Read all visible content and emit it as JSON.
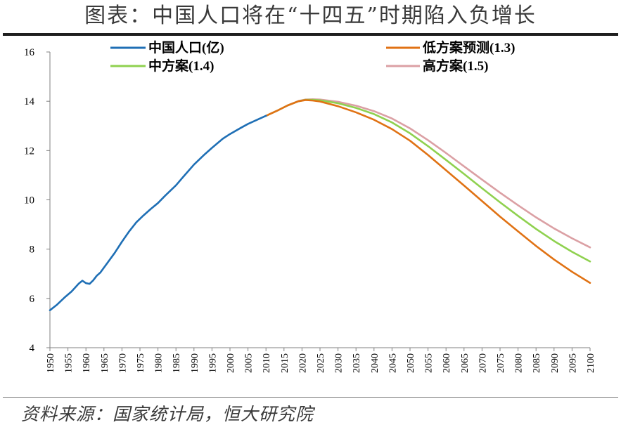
{
  "title": "图表：中国人口将在“十四五”时期陷入负增长",
  "source": "资料来源：国家统计局，恒大研究院",
  "chart_data": {
    "type": "line",
    "title": "图表：中国人口将在“十四五”时期陷入负增长",
    "xlabel": "",
    "ylabel": "",
    "xlim": [
      1950,
      2100
    ],
    "ylim": [
      4,
      16
    ],
    "y_ticks": [
      "4",
      "6",
      "8",
      "10",
      "12",
      "14",
      "16"
    ],
    "x_ticks": [
      "1950",
      "1955",
      "1960",
      "1965",
      "1970",
      "1975",
      "1980",
      "1985",
      "1990",
      "1995",
      "2000",
      "2005",
      "2010",
      "2015",
      "2020",
      "2025",
      "2030",
      "2035",
      "2040",
      "2045",
      "2050",
      "2055",
      "2060",
      "2065",
      "2070",
      "2075",
      "2080",
      "2085",
      "2090",
      "2095",
      "2100"
    ],
    "grid": false,
    "legend_position": "top",
    "series": [
      {
        "name": "中国人口(亿)",
        "color": "#1f6fb5",
        "points": [
          [
            1950,
            5.52
          ],
          [
            1952,
            5.75
          ],
          [
            1954,
            6.03
          ],
          [
            1956,
            6.28
          ],
          [
            1958,
            6.6
          ],
          [
            1959,
            6.72
          ],
          [
            1960,
            6.62
          ],
          [
            1961,
            6.59
          ],
          [
            1962,
            6.73
          ],
          [
            1963,
            6.92
          ],
          [
            1964,
            7.05
          ],
          [
            1966,
            7.45
          ],
          [
            1968,
            7.85
          ],
          [
            1970,
            8.3
          ],
          [
            1972,
            8.72
          ],
          [
            1974,
            9.09
          ],
          [
            1976,
            9.37
          ],
          [
            1978,
            9.63
          ],
          [
            1980,
            9.87
          ],
          [
            1982,
            10.17
          ],
          [
            1985,
            10.59
          ],
          [
            1987,
            10.93
          ],
          [
            1990,
            11.43
          ],
          [
            1993,
            11.85
          ],
          [
            1995,
            12.11
          ],
          [
            1998,
            12.48
          ],
          [
            2000,
            12.67
          ],
          [
            2003,
            12.92
          ],
          [
            2005,
            13.08
          ],
          [
            2008,
            13.28
          ],
          [
            2010,
            13.41
          ]
        ]
      },
      {
        "name": "低方案预测(1.3",
        "color": "#e07214",
        "points": [
          [
            2010,
            13.41
          ],
          [
            2013,
            13.61
          ],
          [
            2016,
            13.83
          ],
          [
            2019,
            14.0
          ],
          [
            2021,
            14.05
          ],
          [
            2023,
            14.03
          ],
          [
            2025,
            13.99
          ],
          [
            2030,
            13.8
          ],
          [
            2035,
            13.55
          ],
          [
            2040,
            13.25
          ],
          [
            2045,
            12.87
          ],
          [
            2050,
            12.4
          ],
          [
            2055,
            11.82
          ],
          [
            2060,
            11.2
          ],
          [
            2065,
            10.58
          ],
          [
            2070,
            9.95
          ],
          [
            2075,
            9.32
          ],
          [
            2080,
            8.72
          ],
          [
            2085,
            8.13
          ],
          [
            2090,
            7.58
          ],
          [
            2095,
            7.08
          ],
          [
            2100,
            6.63
          ]
        ]
      },
      {
        "name": "中方案(1.4)",
        "color": "#8fd14f",
        "points": [
          [
            2010,
            13.41
          ],
          [
            2013,
            13.61
          ],
          [
            2016,
            13.83
          ],
          [
            2019,
            14.0
          ],
          [
            2021,
            14.06
          ],
          [
            2023,
            14.06
          ],
          [
            2025,
            14.04
          ],
          [
            2030,
            13.92
          ],
          [
            2035,
            13.73
          ],
          [
            2040,
            13.48
          ],
          [
            2045,
            13.14
          ],
          [
            2050,
            12.7
          ],
          [
            2055,
            12.18
          ],
          [
            2060,
            11.62
          ],
          [
            2065,
            11.05
          ],
          [
            2070,
            10.47
          ],
          [
            2075,
            9.9
          ],
          [
            2080,
            9.35
          ],
          [
            2085,
            8.82
          ],
          [
            2090,
            8.33
          ],
          [
            2095,
            7.89
          ],
          [
            2100,
            7.5
          ]
        ]
      },
      {
        "name": "高方案(1.5)",
        "color": "#dba0a4",
        "points": [
          [
            2010,
            13.41
          ],
          [
            2013,
            13.61
          ],
          [
            2016,
            13.83
          ],
          [
            2019,
            14.01
          ],
          [
            2021,
            14.07
          ],
          [
            2023,
            14.08
          ],
          [
            2025,
            14.07
          ],
          [
            2030,
            13.98
          ],
          [
            2035,
            13.82
          ],
          [
            2040,
            13.6
          ],
          [
            2045,
            13.3
          ],
          [
            2050,
            12.9
          ],
          [
            2055,
            12.42
          ],
          [
            2060,
            11.9
          ],
          [
            2065,
            11.36
          ],
          [
            2070,
            10.82
          ],
          [
            2075,
            10.29
          ],
          [
            2080,
            9.78
          ],
          [
            2085,
            9.29
          ],
          [
            2090,
            8.84
          ],
          [
            2095,
            8.44
          ],
          [
            2100,
            8.07
          ]
        ]
      }
    ],
    "legend": [
      {
        "label": "中国人口(亿)",
        "series_index": 0
      },
      {
        "label": "低方案预测(1.3)",
        "series_index": 1
      },
      {
        "label": "中方案(1.4)",
        "series_index": 2
      },
      {
        "label": "高方案(1.5)",
        "series_index": 3
      }
    ]
  }
}
